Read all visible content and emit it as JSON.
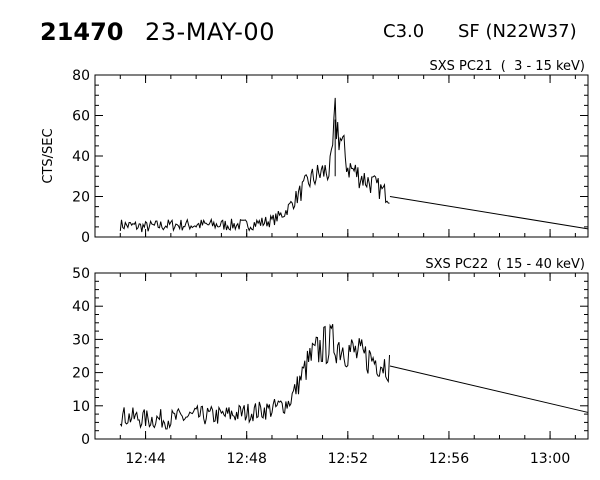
{
  "header": {
    "event_id": "21470",
    "date": "23-MAY-00",
    "flare_class": "C3.0",
    "flare_location": "SF (N22W37)"
  },
  "chart_data": [
    {
      "type": "line",
      "title": "SXS PC21  (  3 - 15 keV)",
      "ylabel": "CTS/SEC",
      "xlim": [
        "12:42:00",
        "13:01:30"
      ],
      "ylim": [
        0,
        80
      ],
      "y_ticks": [
        0,
        20,
        40,
        60,
        80
      ],
      "grid": false,
      "series": [
        {
          "x": [
            "12:43:00",
            "12:44:00",
            "12:45:00",
            "12:46:00",
            "12:47:00",
            "12:48:00",
            "12:49:00",
            "12:49:30",
            "12:50:00",
            "12:50:30",
            "12:51:00",
            "12:51:20",
            "12:51:30",
            "12:52:00",
            "12:52:30",
            "12:53:00",
            "12:53:40",
            "13:01:30"
          ],
          "values": [
            6,
            5,
            6,
            6,
            6,
            6,
            8,
            12,
            20,
            28,
            32,
            33,
            58,
            35,
            30,
            26,
            20,
            4
          ]
        }
      ]
    },
    {
      "type": "line",
      "title": "SXS PC22  ( 15 - 40 keV)",
      "ylabel": "",
      "xlim": [
        "12:42:00",
        "13:01:30"
      ],
      "ylim": [
        0,
        50
      ],
      "y_ticks": [
        0,
        10,
        20,
        30,
        40,
        50
      ],
      "x_ticks": [
        "12:44",
        "12:48",
        "12:52",
        "12:56",
        "13:00"
      ],
      "grid": false,
      "series": [
        {
          "x": [
            "12:43:00",
            "12:44:00",
            "12:45:00",
            "12:46:00",
            "12:47:00",
            "12:48:00",
            "12:49:00",
            "12:49:40",
            "12:50:00",
            "12:50:30",
            "12:51:00",
            "12:51:30",
            "12:52:00",
            "12:52:30",
            "12:53:00",
            "12:53:40",
            "13:01:30"
          ],
          "values": [
            7,
            6,
            6,
            7,
            7,
            8,
            9,
            11,
            16,
            24,
            28,
            29,
            27,
            25,
            24,
            22,
            8
          ]
        }
      ]
    }
  ]
}
